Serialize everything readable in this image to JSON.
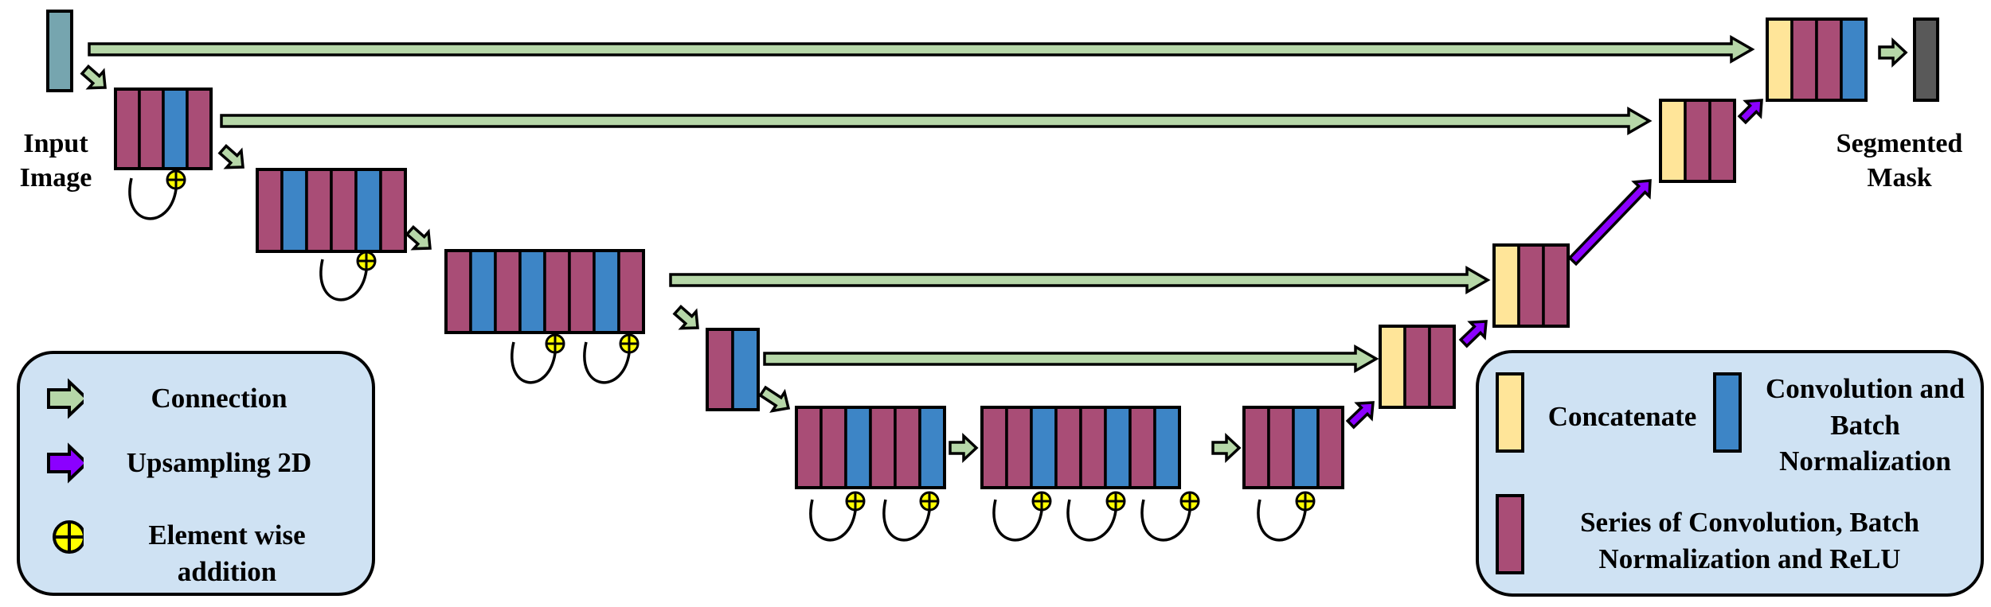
{
  "labels": {
    "input": "Input\nImage",
    "output": "Segmented\nMask"
  },
  "legend_left": {
    "connection": "Connection",
    "upsampling": "Upsampling 2D",
    "addition": "Element wise\naddition"
  },
  "legend_right": {
    "concatenate": "Concatenate",
    "conv_bn": "Convolution and\nBatch\nNormalization",
    "series": "Series of Convolution, Batch\nNormalization and ReLU"
  },
  "colors": {
    "conv_relu": "#a94d76",
    "conv_bn": "#3d85c6",
    "concat": "#ffe599",
    "input": "#76a5af",
    "output": "#595959",
    "connection_arrow": "#b6d7a8",
    "upsample_arrow": "#8b00ff",
    "addition": "#ffff00",
    "legend_bg": "#cfe2f3"
  },
  "icons": [
    "connection-arrow-icon",
    "upsampling-arrow-icon",
    "element-wise-addition-icon"
  ]
}
